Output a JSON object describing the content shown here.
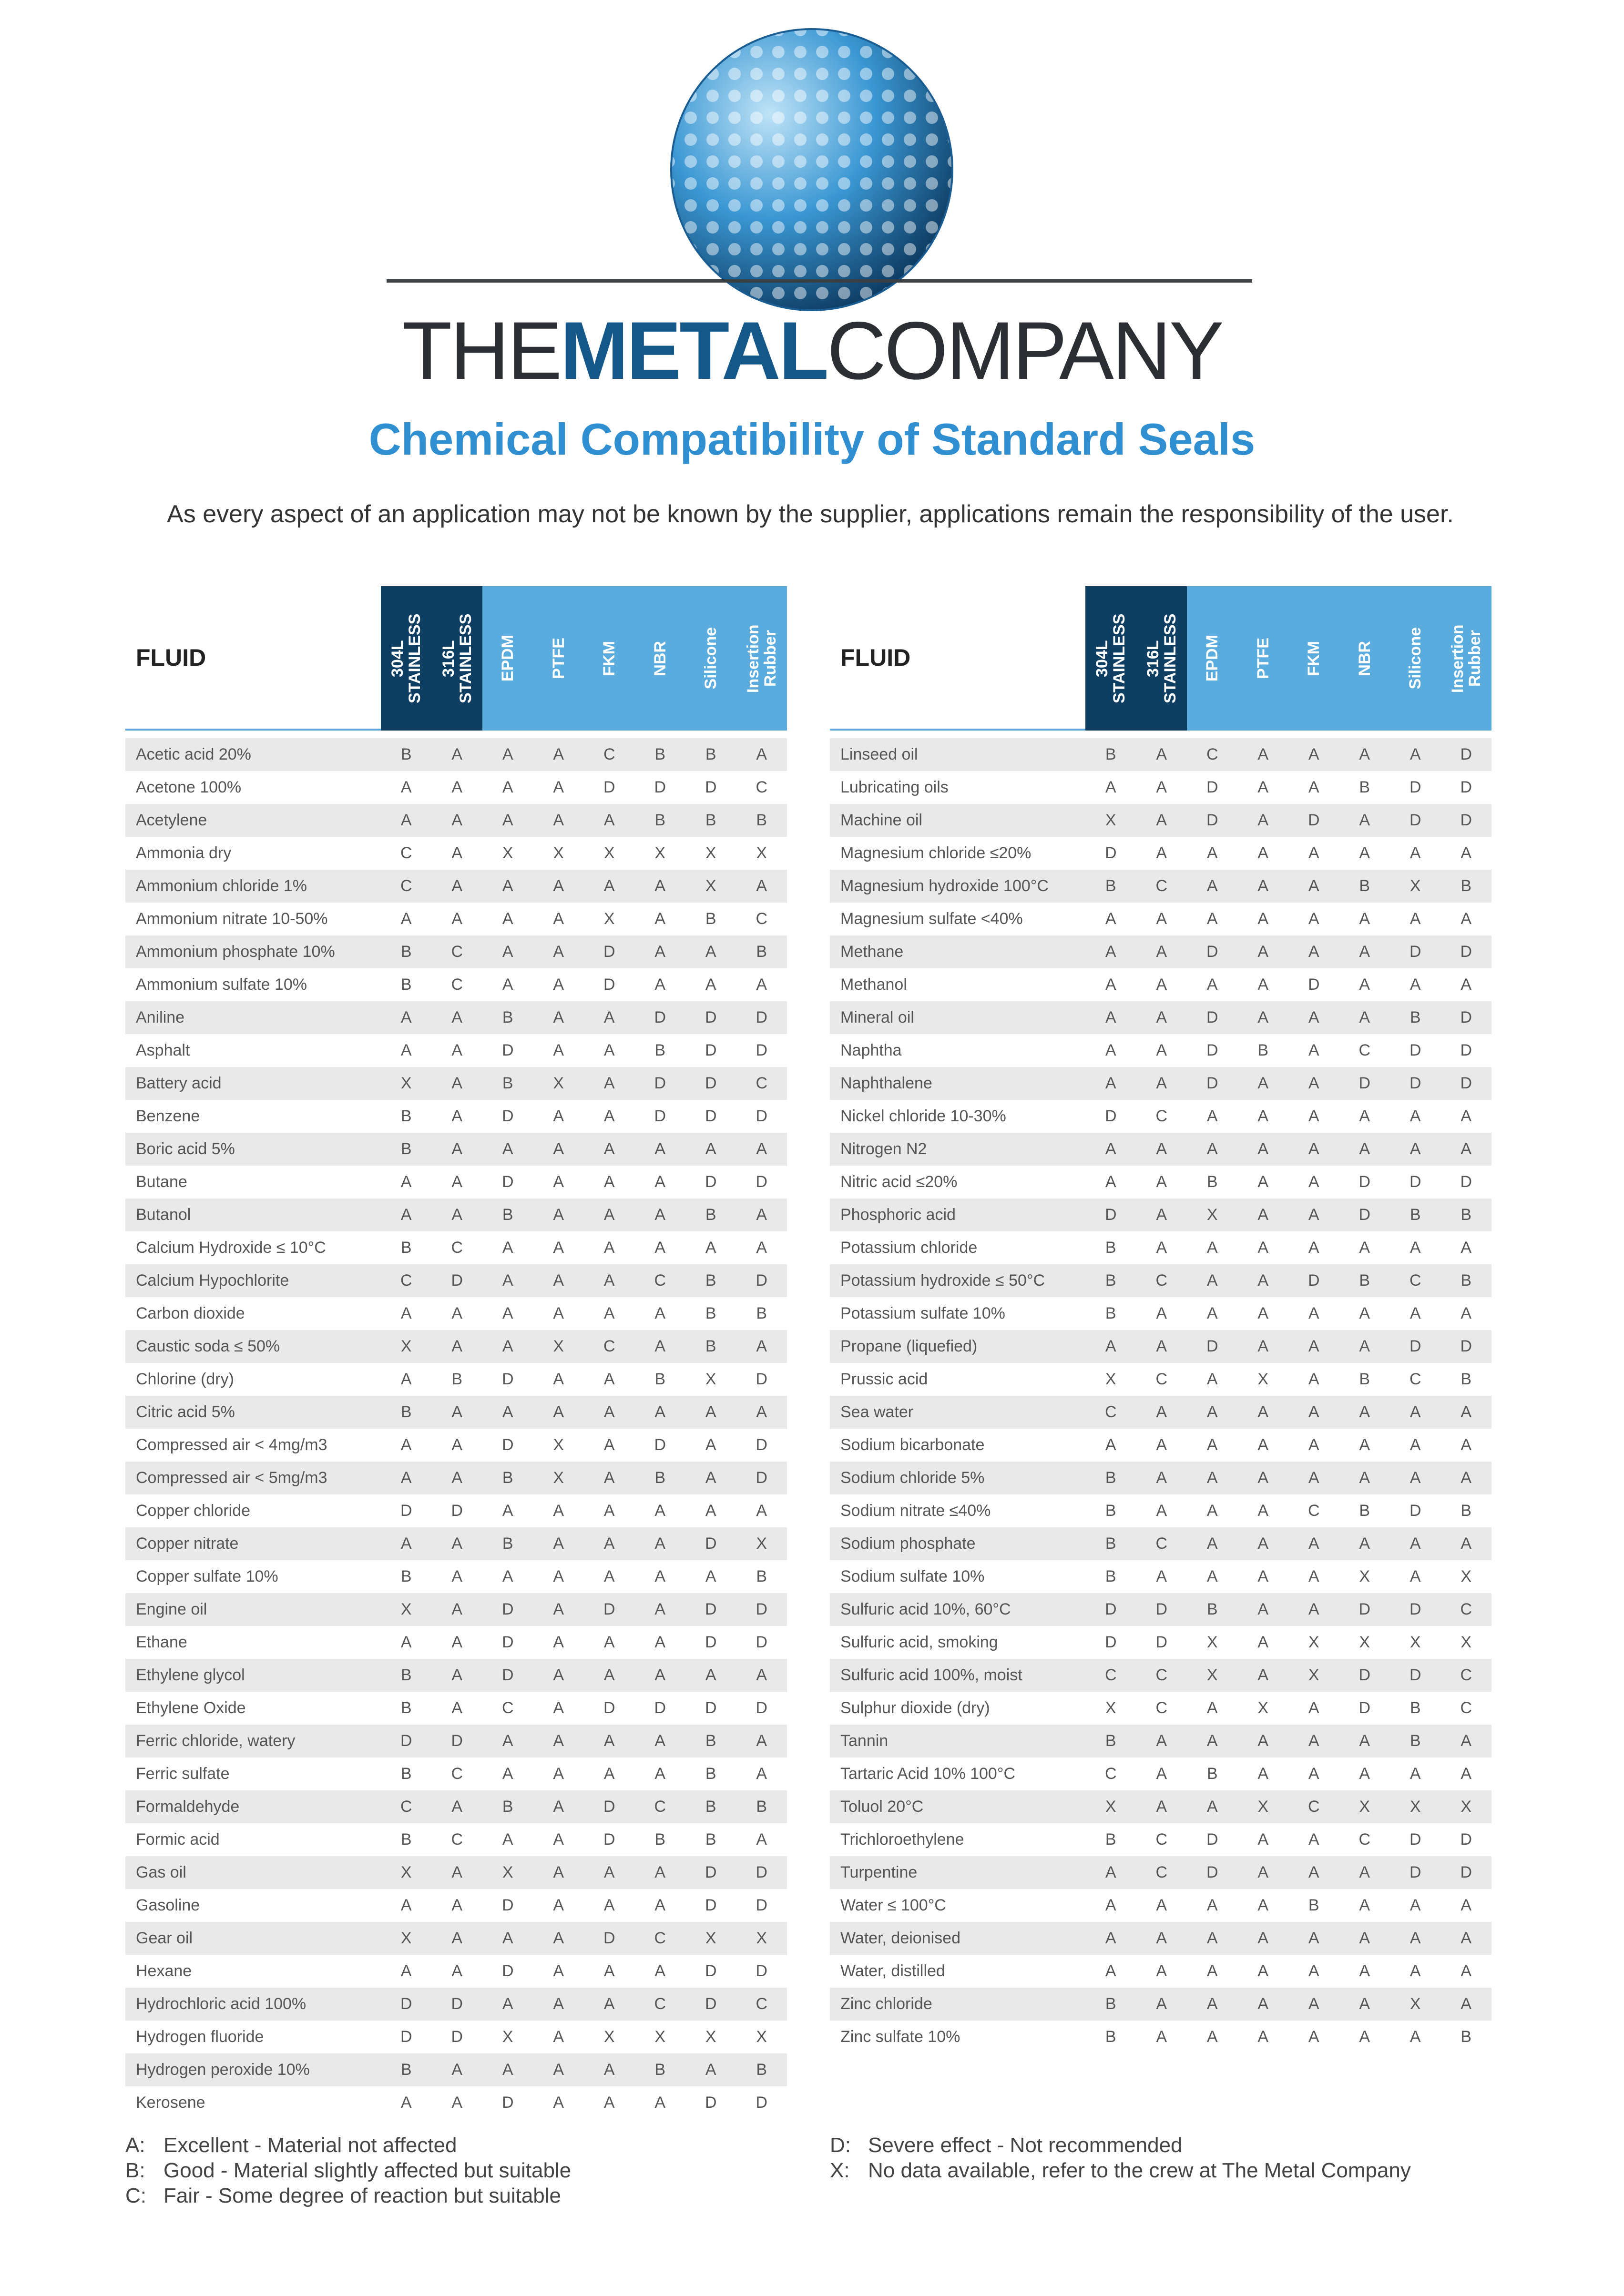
{
  "logo": {
    "part1": "THE",
    "part2": "METAL",
    "part3": "COMPANY"
  },
  "title": "Chemical Compatibility of Standard Seals",
  "intro": "As every aspect of an application may not be known by the supplier, applications remain the responsibility of the user.",
  "tables": [
    {
      "columns": [
        "FLUID",
        "304L STAINLESS",
        "316L STAINLESS",
        "EPDM",
        "PTFE",
        "FKM",
        "NBR",
        "Silicone",
        "Insertion Rubber"
      ],
      "rows": [
        [
          "Acetic acid 20%",
          "B",
          "A",
          "A",
          "A",
          "C",
          "B",
          "B",
          "A"
        ],
        [
          "Acetone 100%",
          "A",
          "A",
          "A",
          "A",
          "D",
          "D",
          "D",
          "C"
        ],
        [
          "Acetylene",
          "A",
          "A",
          "A",
          "A",
          "A",
          "B",
          "B",
          "B"
        ],
        [
          "Ammonia dry",
          "C",
          "A",
          "X",
          "X",
          "X",
          "X",
          "X",
          "X"
        ],
        [
          "Ammonium chloride 1%",
          "C",
          "A",
          "A",
          "A",
          "A",
          "A",
          "X",
          "A"
        ],
        [
          "Ammonium nitrate 10-50%",
          "A",
          "A",
          "A",
          "A",
          "X",
          "A",
          "B",
          "C"
        ],
        [
          "Ammonium phosphate 10%",
          "B",
          "C",
          "A",
          "A",
          "D",
          "A",
          "A",
          "B"
        ],
        [
          "Ammonium sulfate 10%",
          "B",
          "C",
          "A",
          "A",
          "D",
          "A",
          "A",
          "A"
        ],
        [
          "Aniline",
          "A",
          "A",
          "B",
          "A",
          "A",
          "D",
          "D",
          "D"
        ],
        [
          "Asphalt",
          "A",
          "A",
          "D",
          "A",
          "A",
          "B",
          "D",
          "D"
        ],
        [
          "Battery acid",
          "X",
          "A",
          "B",
          "X",
          "A",
          "D",
          "D",
          "C"
        ],
        [
          "Benzene",
          "B",
          "A",
          "D",
          "A",
          "A",
          "D",
          "D",
          "D"
        ],
        [
          "Boric acid 5%",
          "B",
          "A",
          "A",
          "A",
          "A",
          "A",
          "A",
          "A"
        ],
        [
          "Butane",
          "A",
          "A",
          "D",
          "A",
          "A",
          "A",
          "D",
          "D"
        ],
        [
          "Butanol",
          "A",
          "A",
          "B",
          "A",
          "A",
          "A",
          "B",
          "A"
        ],
        [
          "Calcium Hydroxide ≤ 10°C",
          "B",
          "C",
          "A",
          "A",
          "A",
          "A",
          "A",
          "A"
        ],
        [
          "Calcium Hypochlorite",
          "C",
          "D",
          "A",
          "A",
          "A",
          "C",
          "B",
          "D"
        ],
        [
          "Carbon dioxide",
          "A",
          "A",
          "A",
          "A",
          "A",
          "A",
          "B",
          "B"
        ],
        [
          "Caustic soda ≤ 50%",
          "X",
          "A",
          "A",
          "X",
          "C",
          "A",
          "B",
          "A"
        ],
        [
          "Chlorine (dry)",
          "A",
          "B",
          "D",
          "A",
          "A",
          "B",
          "X",
          "D"
        ],
        [
          "Citric acid 5%",
          "B",
          "A",
          "A",
          "A",
          "A",
          "A",
          "A",
          "A"
        ],
        [
          "Compressed air < 4mg/m3",
          "A",
          "A",
          "D",
          "X",
          "A",
          "D",
          "A",
          "D"
        ],
        [
          "Compressed air < 5mg/m3",
          "A",
          "A",
          "B",
          "X",
          "A",
          "B",
          "A",
          "D"
        ],
        [
          "Copper chloride",
          "D",
          "D",
          "A",
          "A",
          "A",
          "A",
          "A",
          "A"
        ],
        [
          "Copper nitrate",
          "A",
          "A",
          "B",
          "A",
          "A",
          "A",
          "D",
          "X"
        ],
        [
          "Copper sulfate 10%",
          "B",
          "A",
          "A",
          "A",
          "A",
          "A",
          "A",
          "B"
        ],
        [
          "Engine oil",
          "X",
          "A",
          "D",
          "A",
          "D",
          "A",
          "D",
          "D"
        ],
        [
          "Ethane",
          "A",
          "A",
          "D",
          "A",
          "A",
          "A",
          "D",
          "D"
        ],
        [
          "Ethylene glycol",
          "B",
          "A",
          "D",
          "A",
          "A",
          "A",
          "A",
          "A"
        ],
        [
          "Ethylene Oxide",
          "B",
          "A",
          "C",
          "A",
          "D",
          "D",
          "D",
          "D"
        ],
        [
          "Ferric chloride, watery",
          "D",
          "D",
          "A",
          "A",
          "A",
          "A",
          "B",
          "A"
        ],
        [
          "Ferric sulfate",
          "B",
          "C",
          "A",
          "A",
          "A",
          "A",
          "B",
          "A"
        ],
        [
          "Formaldehyde",
          "C",
          "A",
          "B",
          "A",
          "D",
          "C",
          "B",
          "B"
        ],
        [
          "Formic acid",
          "B",
          "C",
          "A",
          "A",
          "D",
          "B",
          "B",
          "A"
        ],
        [
          "Gas oil",
          "X",
          "A",
          "X",
          "A",
          "A",
          "A",
          "D",
          "D"
        ],
        [
          "Gasoline",
          "A",
          "A",
          "D",
          "A",
          "A",
          "A",
          "D",
          "D"
        ],
        [
          "Gear oil",
          "X",
          "A",
          "A",
          "A",
          "D",
          "C",
          "X",
          "X"
        ],
        [
          "Hexane",
          "A",
          "A",
          "D",
          "A",
          "A",
          "A",
          "D",
          "D"
        ],
        [
          "Hydrochloric acid 100%",
          "D",
          "D",
          "A",
          "A",
          "A",
          "C",
          "D",
          "C"
        ],
        [
          "Hydrogen fluoride",
          "D",
          "D",
          "X",
          "A",
          "X",
          "X",
          "X",
          "X"
        ],
        [
          "Hydrogen peroxide 10%",
          "B",
          "A",
          "A",
          "A",
          "A",
          "B",
          "A",
          "B"
        ],
        [
          "Kerosene",
          "A",
          "A",
          "D",
          "A",
          "A",
          "A",
          "D",
          "D"
        ]
      ]
    },
    {
      "columns": [
        "FLUID",
        "304L STAINLESS",
        "316L STAINLESS",
        "EPDM",
        "PTFE",
        "FKM",
        "NBR",
        "Silicone",
        "Insertion Rubber"
      ],
      "rows": [
        [
          "Linseed oil",
          "B",
          "A",
          "C",
          "A",
          "A",
          "A",
          "A",
          "D"
        ],
        [
          "Lubricating oils",
          "A",
          "A",
          "D",
          "A",
          "A",
          "B",
          "D",
          "D"
        ],
        [
          "Machine oil",
          "X",
          "A",
          "D",
          "A",
          "D",
          "A",
          "D",
          "D"
        ],
        [
          "Magnesium chloride ≤20%",
          "D",
          "A",
          "A",
          "A",
          "A",
          "A",
          "A",
          "A"
        ],
        [
          "Magnesium hydroxide 100°C",
          "B",
          "C",
          "A",
          "A",
          "A",
          "B",
          "X",
          "B"
        ],
        [
          "Magnesium sulfate <40%",
          "A",
          "A",
          "A",
          "A",
          "A",
          "A",
          "A",
          "A"
        ],
        [
          "Methane",
          "A",
          "A",
          "D",
          "A",
          "A",
          "A",
          "D",
          "D"
        ],
        [
          "Methanol",
          "A",
          "A",
          "A",
          "A",
          "D",
          "A",
          "A",
          "A"
        ],
        [
          "Mineral oil",
          "A",
          "A",
          "D",
          "A",
          "A",
          "A",
          "B",
          "D"
        ],
        [
          "Naphtha",
          "A",
          "A",
          "D",
          "B",
          "A",
          "C",
          "D",
          "D"
        ],
        [
          "Naphthalene",
          "A",
          "A",
          "D",
          "A",
          "A",
          "D",
          "D",
          "D"
        ],
        [
          "Nickel chloride 10-30%",
          "D",
          "C",
          "A",
          "A",
          "A",
          "A",
          "A",
          "A"
        ],
        [
          "Nitrogen N2",
          "A",
          "A",
          "A",
          "A",
          "A",
          "A",
          "A",
          "A"
        ],
        [
          "Nitric acid ≤20%",
          "A",
          "A",
          "B",
          "A",
          "A",
          "D",
          "D",
          "D"
        ],
        [
          "Phosphoric acid",
          "D",
          "A",
          "X",
          "A",
          "A",
          "D",
          "B",
          "B"
        ],
        [
          "Potassium chloride",
          "B",
          "A",
          "A",
          "A",
          "A",
          "A",
          "A",
          "A"
        ],
        [
          "Potassium hydroxide ≤ 50°C",
          "B",
          "C",
          "A",
          "A",
          "D",
          "B",
          "C",
          "B"
        ],
        [
          "Potassium sulfate 10%",
          "B",
          "A",
          "A",
          "A",
          "A",
          "A",
          "A",
          "A"
        ],
        [
          "Propane (liquefied)",
          "A",
          "A",
          "D",
          "A",
          "A",
          "A",
          "D",
          "D"
        ],
        [
          "Prussic acid",
          "X",
          "C",
          "A",
          "X",
          "A",
          "B",
          "C",
          "B"
        ],
        [
          "Sea water",
          "C",
          "A",
          "A",
          "A",
          "A",
          "A",
          "A",
          "A"
        ],
        [
          "Sodium bicarbonate",
          "A",
          "A",
          "A",
          "A",
          "A",
          "A",
          "A",
          "A"
        ],
        [
          "Sodium chloride 5%",
          "B",
          "A",
          "A",
          "A",
          "A",
          "A",
          "A",
          "A"
        ],
        [
          "Sodium nitrate ≤40%",
          "B",
          "A",
          "A",
          "A",
          "C",
          "B",
          "D",
          "B"
        ],
        [
          "Sodium phosphate",
          "B",
          "C",
          "A",
          "A",
          "A",
          "A",
          "A",
          "A"
        ],
        [
          "Sodium sulfate 10%",
          "B",
          "A",
          "A",
          "A",
          "A",
          "X",
          "A",
          "X"
        ],
        [
          "Sulfuric acid 10%, 60°C",
          "D",
          "D",
          "B",
          "A",
          "A",
          "D",
          "D",
          "C"
        ],
        [
          "Sulfuric acid, smoking",
          "D",
          "D",
          "X",
          "A",
          "X",
          "X",
          "X",
          "X"
        ],
        [
          "Sulfuric acid 100%, moist",
          "C",
          "C",
          "X",
          "A",
          "X",
          "D",
          "D",
          "C"
        ],
        [
          "Sulphur dioxide (dry)",
          "X",
          "C",
          "A",
          "X",
          "A",
          "D",
          "B",
          "C"
        ],
        [
          "Tannin",
          "B",
          "A",
          "A",
          "A",
          "A",
          "A",
          "B",
          "A"
        ],
        [
          "Tartaric Acid 10% 100°C",
          "C",
          "A",
          "B",
          "A",
          "A",
          "A",
          "A",
          "A"
        ],
        [
          "Toluol 20°C",
          "X",
          "A",
          "A",
          "X",
          "C",
          "X",
          "X",
          "X"
        ],
        [
          "Trichloroethylene",
          "B",
          "C",
          "D",
          "A",
          "A",
          "C",
          "D",
          "D"
        ],
        [
          "Turpentine",
          "A",
          "C",
          "D",
          "A",
          "A",
          "A",
          "D",
          "D"
        ],
        [
          "Water ≤ 100°C",
          "A",
          "A",
          "A",
          "A",
          "B",
          "A",
          "A",
          "A"
        ],
        [
          "Water, deionised",
          "A",
          "A",
          "A",
          "A",
          "A",
          "A",
          "A",
          "A"
        ],
        [
          "Water, distilled",
          "A",
          "A",
          "A",
          "A",
          "A",
          "A",
          "A",
          "A"
        ],
        [
          "Zinc chloride",
          "B",
          "A",
          "A",
          "A",
          "A",
          "A",
          "X",
          "A"
        ],
        [
          "Zinc sulfate 10%",
          "B",
          "A",
          "A",
          "A",
          "A",
          "A",
          "A",
          "B"
        ]
      ]
    }
  ],
  "legend": [
    [
      "A:",
      "Excellent - Material not affected"
    ],
    [
      "B:",
      "Good - Material slightly affected but suitable"
    ],
    [
      "C:",
      "Fair - Some degree of reaction but suitable"
    ],
    [
      "D:",
      "Severe effect - Not recommended"
    ],
    [
      "X:",
      "No data available, refer to the crew at The Metal Company"
    ]
  ]
}
